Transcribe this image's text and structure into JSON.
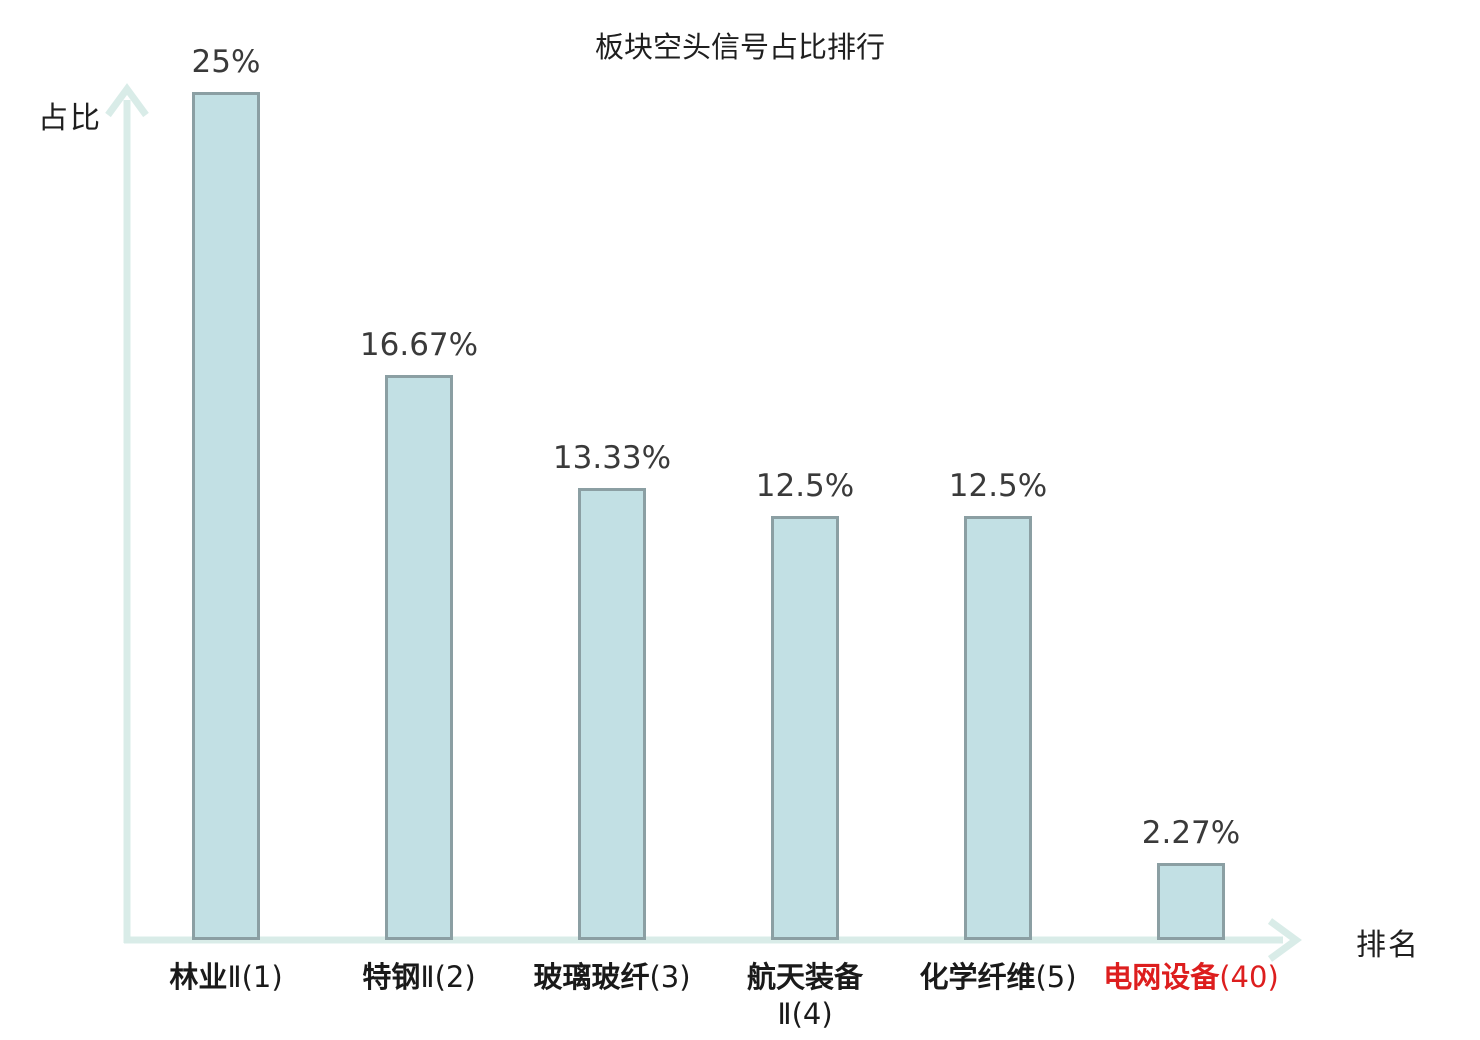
{
  "chart_data": {
    "type": "bar",
    "title": "板块空头信号占比排行",
    "ylabel": "占比",
    "xlabel": "排名",
    "ylim": [
      0,
      25
    ],
    "grid": false,
    "legend": "none",
    "categories": [
      "林业Ⅱ(1)",
      "特钢Ⅱ(2)",
      "玻璃玻纤(3)",
      "航天装备Ⅱ(4)",
      "化学纤维(5)",
      "电网设备(40)"
    ],
    "values": [
      25,
      16.67,
      13.33,
      12.5,
      12.5,
      2.27
    ],
    "value_labels": [
      "25%",
      "16.67%",
      "13.33%",
      "12.5%",
      "12.5%",
      "2.27%"
    ],
    "category_label_parts": [
      {
        "cjk": "林业",
        "rest": "Ⅱ(1)",
        "line_break": false,
        "color": "#1a1a1a"
      },
      {
        "cjk": "特钢",
        "rest": "Ⅱ(2)",
        "line_break": false,
        "color": "#1a1a1a"
      },
      {
        "cjk": "玻璃玻纤",
        "rest": "(3)",
        "line_break": false,
        "color": "#1a1a1a"
      },
      {
        "cjk": "航天装备",
        "rest": "Ⅱ(4)",
        "line_break": true,
        "color": "#1a1a1a"
      },
      {
        "cjk": "化学纤维",
        "rest": "(5)",
        "line_break": false,
        "color": "#1a1a1a"
      },
      {
        "cjk": "电网设备",
        "rest": "(40)",
        "line_break": false,
        "color": "#dd1e1e"
      }
    ],
    "colors": {
      "bar_fill": "#c2e0e4",
      "bar_border": "#8b9fa3",
      "axis": "#d9ece8",
      "value_label": "#3a3a3a",
      "category_label_default": "#1a1a1a",
      "category_label_highlight": "#dd1e1e",
      "title": "#1f1f1f"
    }
  }
}
